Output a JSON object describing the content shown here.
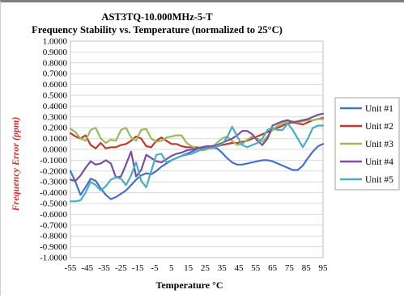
{
  "colors": {
    "unit1": "#4472c4",
    "unit2": "#c0392b",
    "unit3": "#9bbb59",
    "unit4": "#7b4fa0",
    "unit5": "#4bacc6",
    "ylabel": "#d42a2a",
    "grid": "#d9d9d9"
  },
  "chart_data": {
    "type": "line",
    "title": "AST3TQ-10.000MHz-5-T",
    "subtitle": "Frequency Stability vs. Temperature (normalized to 25°C)",
    "xlabel": "Temperature °C",
    "ylabel": "Frequency Error (ppm)",
    "xlim": [
      -55,
      95
    ],
    "ylim": [
      -1.0,
      1.0
    ],
    "x_ticks": [
      "-55",
      "-45",
      "-35",
      "-25",
      "-15",
      "-5",
      "5",
      "15",
      "25",
      "35",
      "45",
      "55",
      "65",
      "75",
      "85",
      "95"
    ],
    "y_ticks": [
      "1.0000",
      "0.9000",
      "0.8000",
      "0.7000",
      "0.6000",
      "0.5000",
      "0.4000",
      "0.3000",
      "0.2000",
      "0.1000",
      "0.0000",
      "-0.1000",
      "-0.2000",
      "-0.3000",
      "-0.4000",
      "-0.5000",
      "-0.6000",
      "-0.7000",
      "-0.8000",
      "-0.9000",
      "-1.0000"
    ],
    "grid": true,
    "legend_position": "right",
    "series": [
      {
        "name": "Unit #1",
        "x": [
          -55,
          -52,
          -49,
          -46,
          -43,
          -40,
          -37,
          -34,
          -31,
          -28,
          -25,
          -22,
          -19,
          -16,
          -13,
          -10,
          -7,
          -4,
          -1,
          2,
          5,
          8,
          11,
          14,
          17,
          20,
          23,
          26,
          29,
          32,
          35,
          38,
          41,
          44,
          47,
          50,
          53,
          56,
          59,
          62,
          65,
          68,
          71,
          74,
          77,
          80,
          83,
          86,
          89,
          92,
          95
        ],
        "y": [
          -0.2,
          -0.3,
          -0.42,
          -0.35,
          -0.27,
          -0.29,
          -0.36,
          -0.42,
          -0.46,
          -0.44,
          -0.41,
          -0.38,
          -0.33,
          -0.28,
          -0.24,
          -0.22,
          -0.23,
          -0.2,
          -0.16,
          -0.13,
          -0.1,
          -0.08,
          -0.06,
          -0.04,
          -0.02,
          0.0,
          0.01,
          0.02,
          0.02,
          0.01,
          -0.03,
          -0.08,
          -0.12,
          -0.14,
          -0.14,
          -0.13,
          -0.12,
          -0.11,
          -0.1,
          -0.1,
          -0.11,
          -0.13,
          -0.15,
          -0.17,
          -0.19,
          -0.19,
          -0.15,
          -0.08,
          -0.02,
          0.03,
          0.05
        ]
      },
      {
        "name": "Unit #2",
        "x": [
          -55,
          -52,
          -49,
          -46,
          -43,
          -40,
          -37,
          -34,
          -31,
          -28,
          -25,
          -22,
          -19,
          -16,
          -13,
          -10,
          -7,
          -4,
          -1,
          2,
          5,
          8,
          11,
          14,
          17,
          20,
          23,
          26,
          29,
          32,
          35,
          38,
          41,
          44,
          47,
          50,
          53,
          56,
          59,
          62,
          65,
          68,
          71,
          74,
          77,
          80,
          83,
          86,
          89,
          92,
          95
        ],
        "y": [
          0.15,
          0.12,
          0.1,
          0.13,
          0.04,
          0.01,
          0.06,
          0.01,
          0.02,
          0.02,
          0.04,
          0.05,
          0.08,
          0.12,
          0.1,
          0.03,
          0.02,
          0.08,
          0.11,
          0.08,
          0.05,
          0.05,
          0.03,
          0.02,
          0.02,
          0.02,
          0.01,
          0.01,
          0.02,
          0.03,
          0.04,
          0.05,
          0.06,
          0.06,
          0.07,
          0.08,
          0.1,
          0.12,
          0.14,
          0.16,
          0.18,
          0.2,
          0.22,
          0.24,
          0.25,
          0.24,
          0.23,
          0.25,
          0.27,
          0.28,
          0.29
        ]
      },
      {
        "name": "Unit #3",
        "x": [
          -55,
          -52,
          -49,
          -46,
          -43,
          -40,
          -37,
          -34,
          -31,
          -28,
          -25,
          -22,
          -19,
          -16,
          -13,
          -10,
          -7,
          -4,
          -1,
          2,
          5,
          8,
          11,
          14,
          17,
          20,
          23,
          26,
          29,
          32,
          35,
          38,
          41,
          44,
          47,
          50,
          53,
          56,
          59,
          62,
          65,
          68,
          71,
          74,
          77,
          80,
          83,
          86,
          89,
          92,
          95
        ],
        "y": [
          0.19,
          0.16,
          0.1,
          0.08,
          0.18,
          0.2,
          0.1,
          0.06,
          0.09,
          0.08,
          0.18,
          0.2,
          0.11,
          0.08,
          0.18,
          0.19,
          0.1,
          0.07,
          0.08,
          0.11,
          0.12,
          0.13,
          0.13,
          0.06,
          0.03,
          0.01,
          -0.01,
          0.0,
          0.02,
          0.06,
          0.1,
          0.12,
          0.08,
          0.04,
          0.05,
          0.09,
          0.12,
          0.1,
          0.07,
          0.12,
          0.18,
          0.22,
          0.24,
          0.26,
          0.26,
          0.25,
          0.26,
          0.27,
          0.27,
          0.28,
          0.28
        ]
      },
      {
        "name": "Unit #4",
        "x": [
          -55,
          -52,
          -49,
          -46,
          -43,
          -40,
          -37,
          -34,
          -31,
          -28,
          -25,
          -22,
          -19,
          -16,
          -13,
          -10,
          -7,
          -4,
          -1,
          2,
          5,
          8,
          11,
          14,
          17,
          20,
          23,
          26,
          29,
          32,
          35,
          38,
          41,
          44,
          47,
          50,
          53,
          56,
          59,
          62,
          65,
          68,
          71,
          74,
          77,
          80,
          83,
          86,
          89,
          92,
          95
        ],
        "y": [
          -0.28,
          -0.29,
          -0.24,
          -0.17,
          -0.11,
          -0.14,
          -0.13,
          -0.1,
          -0.13,
          -0.26,
          -0.25,
          -0.14,
          -0.02,
          -0.25,
          -0.19,
          -0.05,
          -0.08,
          -0.11,
          -0.12,
          -0.09,
          -0.06,
          -0.04,
          -0.03,
          -0.01,
          0.0,
          0.01,
          0.02,
          0.03,
          0.03,
          0.04,
          0.06,
          0.08,
          0.1,
          0.13,
          0.17,
          0.17,
          0.14,
          0.08,
          0.04,
          0.1,
          0.22,
          0.24,
          0.26,
          0.27,
          0.25,
          0.26,
          0.27,
          0.28,
          0.3,
          0.32,
          0.33
        ]
      },
      {
        "name": "Unit #5",
        "x": [
          -55,
          -52,
          -49,
          -46,
          -43,
          -40,
          -37,
          -34,
          -31,
          -28,
          -25,
          -22,
          -19,
          -16,
          -13,
          -10,
          -7,
          -4,
          -1,
          2,
          5,
          8,
          11,
          14,
          17,
          20,
          23,
          26,
          29,
          32,
          35,
          38,
          41,
          44,
          47,
          50,
          53,
          56,
          59,
          62,
          65,
          68,
          71,
          74,
          77,
          80,
          83,
          86,
          89,
          92,
          95
        ],
        "y": [
          -0.48,
          -0.48,
          -0.47,
          -0.4,
          -0.3,
          -0.33,
          -0.38,
          -0.34,
          -0.28,
          -0.26,
          -0.27,
          -0.33,
          -0.24,
          -0.12,
          -0.29,
          -0.35,
          -0.2,
          -0.05,
          -0.04,
          -0.12,
          -0.1,
          -0.08,
          -0.06,
          -0.05,
          -0.04,
          -0.02,
          0.0,
          0.01,
          0.01,
          0.03,
          0.05,
          0.11,
          0.21,
          0.12,
          0.04,
          0.02,
          0.04,
          0.06,
          0.1,
          0.18,
          0.2,
          0.18,
          0.18,
          0.24,
          0.18,
          0.1,
          0.02,
          0.1,
          0.2,
          0.22,
          0.22
        ]
      }
    ]
  }
}
